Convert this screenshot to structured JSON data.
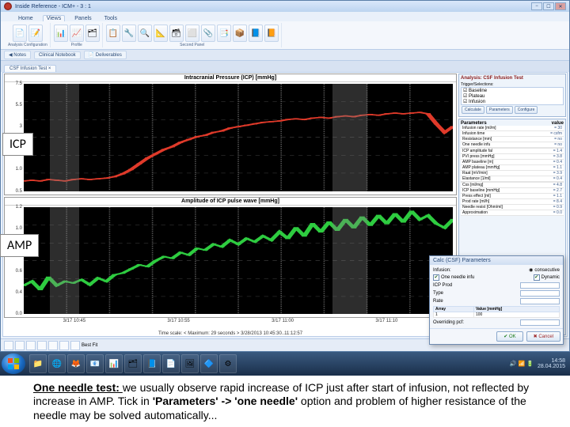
{
  "window": {
    "title": "Inside Reference - ICM+ - 3 : 1"
  },
  "ribbon": {
    "tabs": [
      "Home",
      "Views",
      "Panels",
      "Tools"
    ],
    "active_tab": 1,
    "groups": [
      {
        "label": "Analysis Configuration",
        "icons": [
          "📄",
          "📝"
        ]
      },
      {
        "label": "Profile",
        "icons": [
          "📊",
          "📈",
          "🗂"
        ]
      },
      {
        "label": "Second Panel",
        "icons": [
          "📋",
          "🔧",
          "🔍",
          "📐",
          "🗃",
          "⬜",
          "📎",
          "📑",
          "📦",
          "📘",
          "📙"
        ]
      }
    ]
  },
  "subbar": {
    "items": [
      "◀ Notes",
      "Clinical Notebook",
      "📄 Deliverables"
    ]
  },
  "tabstrip": {
    "tabs": [
      "CSF Infusion Test  ×"
    ]
  },
  "charts": {
    "icp": {
      "title": "Intracranial Pressure (ICP) [mmHg]",
      "yticks": [
        "0.5",
        "1.0",
        "1.5",
        "3",
        "5.5",
        "7.5"
      ],
      "color": "#e03a2a",
      "shade_bands": [
        [
          0.06,
          0.13
        ],
        [
          0.72,
          0.8
        ]
      ],
      "points": [
        1.2,
        1.25,
        1.2,
        1.3,
        1.25,
        1.2,
        1.3,
        1.35,
        1.3,
        1.35,
        1.4,
        1.5,
        1.7,
        2.0,
        2.4,
        2.8,
        3.1,
        3.4,
        3.6,
        3.9,
        4.1,
        4.3,
        4.4,
        4.6,
        4.7,
        4.9,
        5.0,
        5.1,
        5.2,
        5.3,
        5.35,
        5.4,
        5.5,
        5.55,
        5.5,
        5.6,
        5.65,
        5.6,
        5.7,
        5.75,
        5.7,
        5.8,
        5.85,
        5.8,
        5.9,
        5.95,
        5.9,
        5.95,
        6.0,
        5.9,
        5.2,
        4.6,
        5.0
      ],
      "ymin": 0.5,
      "ymax": 8.0
    },
    "amp": {
      "title": "Amplitude of ICP pulse wave [mmHg]",
      "yticks": [
        "0.0",
        "0.4",
        "0.6",
        "0.8",
        "1.0",
        "1.2"
      ],
      "color": "#2ecc40",
      "shade_bands": [
        [
          0.06,
          0.13
        ],
        [
          0.72,
          0.8
        ]
      ],
      "points": [
        0.35,
        0.4,
        0.3,
        0.45,
        0.35,
        0.4,
        0.38,
        0.42,
        0.36,
        0.44,
        0.4,
        0.48,
        0.5,
        0.55,
        0.6,
        0.58,
        0.65,
        0.7,
        0.68,
        0.75,
        0.72,
        0.8,
        0.78,
        0.85,
        0.82,
        0.9,
        0.85,
        0.92,
        0.88,
        0.95,
        0.9,
        1.0,
        0.92,
        1.05,
        0.95,
        1.1,
        1.0,
        1.12,
        1.02,
        1.15,
        1.05,
        1.18,
        1.08,
        1.2,
        1.1,
        1.22,
        1.12,
        1.25,
        1.15,
        1.2,
        1.1,
        1.05,
        1.15
      ],
      "ymin": 0.0,
      "ymax": 1.3
    },
    "xticks": [
      "3/17 10:45",
      "3/17 10:55",
      "3/17 11:00",
      "3/17 11:10"
    ],
    "xlabel": "Time scale: < Maximum: 29 seconds >   3/28/2013 10:45:30..11:12:57"
  },
  "overlays": {
    "icp": "ICP",
    "amp": "AMP"
  },
  "sidepanel": {
    "analysis_header": "Analysis: CSF Infusion Test",
    "trends_label": "Trigger/Selections:",
    "trend_items": [
      "☑ Baseline",
      "☑ Plateau",
      "☑ Infusion"
    ],
    "buttons": [
      "Calculate",
      "Parameters",
      "Configure"
    ],
    "params_header": "Parameters",
    "params_col": "value",
    "params": [
      [
        "Infusion rate [ml/m]",
        "= 30"
      ],
      [
        "Infusion time",
        "= csfm"
      ],
      [
        "Resistance [mm]",
        "= no"
      ],
      [
        "One needle infu",
        "= no"
      ],
      [
        "",
        ""
      ],
      [
        "ICP amplitude fal",
        "= 1.4"
      ],
      [
        "PVI press [mmHg]",
        "= 3.8"
      ],
      [
        "AMP baseline [m]",
        "= 0.4"
      ],
      [
        "AMP plateau [mmHg]",
        "= 1.1"
      ],
      [
        "Raat [mV/min]",
        "= 3.9"
      ],
      [
        "Elastance [1/ml]",
        "= 0.4"
      ],
      [
        "",
        ""
      ],
      [
        "Css [ml/mg]",
        "= 4.8"
      ],
      [
        "ICP baseline [mmHg]",
        "= 2.7"
      ],
      [
        "Press effect [ml]",
        "= 1.1"
      ],
      [
        "Prod rate [ml/h]",
        "= 8.4"
      ],
      [
        "Needle resist [Ohm/ml]",
        "= 0.9"
      ],
      [
        "Approximation",
        "= 0.0"
      ]
    ]
  },
  "dialog": {
    "title": "Calc (CSF) Parameters",
    "row1": {
      "label1": "Infusion:",
      "label2": "consecutive",
      "sel": "🔵"
    },
    "row2": {
      "chk": "☑",
      "label": "One needle infu",
      "chk2": "☑",
      "label2": "Dynamic"
    },
    "row3": {
      "label": "ICP Prod",
      "sel": ""
    },
    "row4": {
      "label": "Type",
      "sel": ""
    },
    "row5": {
      "label": "Rate",
      "sel": ""
    },
    "table": {
      "headers": [
        "Array",
        "Value [mmHg]"
      ],
      "rows": [
        [
          "1",
          "100"
        ]
      ]
    },
    "overriding": "Overriding pcf:",
    "ok": "✔ OK",
    "cancel": "✖ Cancel"
  },
  "win_status": {
    "label": "Best Fit",
    "icons": 7
  },
  "taskbar": {
    "items": [
      "📁",
      "🌐",
      "🦊",
      "📧",
      "📊",
      "🗂",
      "📘",
      "📄",
      "🖼",
      "🔷",
      "⚙"
    ],
    "tray": {
      "icons": [
        "🔊",
        "📶",
        "🔋"
      ],
      "time": "14:58",
      "date": "28.04.2015"
    }
  },
  "caption": {
    "lead": "One needle test: ",
    "body1": "we usually observe rapid increase of ICP just after start of infusion, not reflected by increase in AMP. Tick in ",
    "bold1": "'Parameters' -> 'one needle'",
    "body2": " option and problem  of higher resistance of the needle may be solved automatically..."
  }
}
